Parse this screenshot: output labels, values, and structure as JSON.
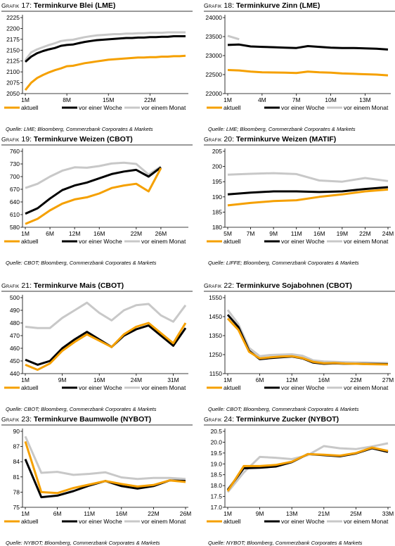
{
  "legend": [
    "aktuell",
    "vor einer Woche",
    "vor einem Monat"
  ],
  "colors": {
    "aktuell": "#f5a000",
    "woche": "#000000",
    "monat": "#c8c8c8"
  },
  "chart_data": [
    {
      "id": "g17",
      "prefix": "Grafik",
      "num": "17:",
      "title": "Terminkurve Blei (LME)",
      "source": "Quelle: LME; Bloomberg, Commerzbank Corporates & Markets",
      "type": "line",
      "yticks": [
        "2050",
        "2075",
        "2100",
        "2125",
        "2150",
        "2175",
        "2200",
        "2225"
      ],
      "ylim": [
        2050,
        2225
      ],
      "x_ticks": [
        "1M",
        "8M",
        "15M",
        "22M"
      ],
      "n_points": 28,
      "xtick_idx": [
        0,
        7,
        14,
        21
      ],
      "series": [
        {
          "name": "aktuell",
          "values": [
            2058,
            2075,
            2086,
            2093,
            2099,
            2104,
            2108,
            2113,
            2114,
            2117,
            2120,
            2122,
            2124,
            2126,
            2128,
            2129,
            2130,
            2131,
            2132,
            2133,
            2133,
            2134,
            2134,
            2135,
            2135,
            2136,
            2136,
            2137
          ]
        },
        {
          "name": "vor einer Woche",
          "values": [
            2123,
            2135,
            2143,
            2148,
            2152,
            2155,
            2160,
            2162,
            2163,
            2166,
            2169,
            2171,
            2173,
            2174,
            2175,
            2176,
            2177,
            2178,
            2178,
            2179,
            2179,
            2180,
            2180,
            2181,
            2181,
            2182,
            2182,
            2182
          ]
        },
        {
          "name": "vor einem Monat",
          "values": [
            2127,
            2145,
            2152,
            2157,
            2162,
            2166,
            2171,
            2173,
            2174,
            2177,
            2180,
            2182,
            2184,
            2185,
            2186,
            2187,
            2187,
            2188,
            2188,
            2189,
            2189,
            2190,
            2190,
            2190,
            2191,
            2191,
            2191,
            2191
          ]
        }
      ]
    },
    {
      "id": "g18",
      "prefix": "Grafik",
      "num": "18:",
      "title": "Terminkurve Zinn (LME)",
      "source": "Quelle: LME; Bloomberg, Commerzbank Corporates & Markets",
      "type": "line",
      "yticks": [
        "22000",
        "22500",
        "23000",
        "23500",
        "24000"
      ],
      "ylim": [
        22000,
        24000
      ],
      "x_ticks": [
        "1M",
        "4M",
        "7M",
        "10M",
        "13M"
      ],
      "n_points": 15,
      "xtick_idx": [
        0,
        3,
        6,
        9,
        12
      ],
      "series": [
        {
          "name": "aktuell",
          "values": [
            22620,
            22610,
            22580,
            22560,
            22555,
            22550,
            22540,
            22580,
            22560,
            22550,
            22530,
            22520,
            22510,
            22500,
            22480
          ]
        },
        {
          "name": "vor einer Woche",
          "values": [
            23280,
            23290,
            23240,
            23230,
            23220,
            23210,
            23200,
            23250,
            23230,
            23210,
            23200,
            23200,
            23190,
            23180,
            23160
          ]
        },
        {
          "name": "vor einem Monat",
          "values": [
            23520,
            23430,
            null,
            null,
            null,
            null,
            null,
            null,
            null,
            null,
            null,
            null,
            null,
            null,
            null
          ]
        }
      ]
    },
    {
      "id": "g19",
      "prefix": "Grafik",
      "num": "19:",
      "title": "Terminkurve Weizen (CBOT)",
      "source": "Quelle: CBOT; Bloomberg, Commerzbank Corporates & Markets",
      "type": "line",
      "yticks": [
        "580",
        "610",
        "640",
        "670",
        "700",
        "730",
        "760"
      ],
      "ylim": [
        580,
        760
      ],
      "x_ticks": [
        "1M",
        "6M",
        "12M",
        "16M",
        "22M",
        "26M"
      ],
      "n_points": 14,
      "xtick_idx": [
        0,
        2,
        4,
        6,
        9,
        11
      ],
      "series": [
        {
          "name": "aktuell",
          "values": [
            588,
            600,
            620,
            636,
            646,
            651,
            660,
            673,
            679,
            683,
            665,
            720,
            null,
            null
          ]
        },
        {
          "name": "vor einer Woche",
          "values": [
            612,
            625,
            648,
            668,
            679,
            686,
            696,
            706,
            712,
            716,
            700,
            722,
            null,
            null
          ]
        },
        {
          "name": "vor einem Monat",
          "values": [
            673,
            683,
            700,
            714,
            722,
            721,
            725,
            731,
            733,
            730,
            705,
            724,
            null,
            null
          ]
        }
      ]
    },
    {
      "id": "g20",
      "prefix": "Grafik",
      "num": "20:",
      "title": "Terminkurve Weizen (MATIF)",
      "source": "Quelle: LIFFE; Bloomberg, Commerzbank Corporates & Markets",
      "type": "line",
      "yticks": [
        "180",
        "185",
        "190",
        "195",
        "200",
        "205"
      ],
      "ylim": [
        180,
        205
      ],
      "x_ticks": [
        "5M",
        "7M",
        "9M",
        "11M",
        "16M",
        "19M",
        "22M",
        "24M"
      ],
      "n_points": 8,
      "xtick_idx": [
        0,
        1,
        2,
        3,
        4,
        5,
        6,
        7
      ],
      "series": [
        {
          "name": "aktuell",
          "values": [
            187.2,
            188.0,
            188.6,
            188.9,
            190.0,
            190.8,
            191.8,
            192.4
          ]
        },
        {
          "name": "vor einer Woche",
          "values": [
            190.8,
            191.4,
            191.8,
            191.8,
            191.6,
            191.8,
            192.6,
            193.2
          ]
        },
        {
          "name": "vor einem Monat",
          "values": [
            197.3,
            197.6,
            197.8,
            197.5,
            195.4,
            195.0,
            196.2,
            195.2
          ]
        }
      ]
    },
    {
      "id": "g21",
      "prefix": "Grafik",
      "num": "21:",
      "title": "Terminkurve Mais (CBOT)",
      "source": "Quelle: CBOT; Bloomberg, Commerzbank Corporates & Markets",
      "type": "line",
      "yticks": [
        "440",
        "450",
        "460",
        "470",
        "480",
        "490",
        "500"
      ],
      "ylim": [
        440,
        500
      ],
      "x_ticks": [
        "1M",
        "9M",
        "16M",
        "24M",
        "31M"
      ],
      "n_points": 14,
      "xtick_idx": [
        0,
        3,
        6,
        9,
        12
      ],
      "series": [
        {
          "name": "aktuell",
          "values": [
            447,
            443,
            448,
            458,
            465,
            471,
            466,
            461,
            471,
            477,
            480,
            472,
            464,
            480
          ]
        },
        {
          "name": "vor einer Woche",
          "values": [
            451,
            447,
            450,
            460,
            467,
            473,
            467,
            461,
            470,
            475,
            478,
            470,
            462,
            476
          ]
        },
        {
          "name": "vor einem Monat",
          "values": [
            477,
            476,
            476,
            484,
            490,
            496,
            488,
            482,
            490,
            494,
            495,
            486,
            481,
            494
          ]
        }
      ]
    },
    {
      "id": "g22",
      "prefix": "Grafik",
      "num": "22:",
      "title": "Terminkurve Sojabohnen (CBOT)",
      "source": "Quelle: CBOT; Bloomberg, Commerzbank Corporates & Markets",
      "type": "line",
      "yticks": [
        "1150",
        "1250",
        "1350",
        "1450",
        "1550"
      ],
      "ylim": [
        1150,
        1550
      ],
      "x_ticks": [
        "1M",
        "6M",
        "12M",
        "16M",
        "22M",
        "27M"
      ],
      "n_points": 16,
      "xtick_idx": [
        0,
        3,
        6,
        9,
        12,
        15
      ],
      "series": [
        {
          "name": "aktuell",
          "values": [
            1440,
            1380,
            1265,
            1230,
            1236,
            1240,
            1242,
            1232,
            1212,
            1205,
            1206,
            1203,
            1202,
            1200,
            1199,
            1198
          ]
        },
        {
          "name": "vor einer Woche",
          "values": [
            1460,
            1395,
            1270,
            1226,
            1232,
            1236,
            1240,
            1230,
            1208,
            1202,
            1204,
            1202,
            1202,
            1201,
            1201,
            1200
          ]
        },
        {
          "name": "vor einem Monat",
          "values": [
            1485,
            1410,
            1285,
            1242,
            1248,
            1250,
            1252,
            1244,
            1220,
            1214,
            1212,
            1210,
            1209,
            1208,
            1206,
            1206
          ]
        }
      ]
    },
    {
      "id": "g23",
      "prefix": "Grafik",
      "num": "23:",
      "title": "Terminkurve Baumwolle (NYBOT)",
      "source": "Quelle: NYBOT; Bloomberg, Commerzbank Corporates & Markets",
      "type": "line",
      "yticks": [
        "75",
        "78",
        "81",
        "84",
        "87",
        "90"
      ],
      "ylim": [
        75,
        90
      ],
      "x_ticks": [
        "1M",
        "6M",
        "11M",
        "16M",
        "22M",
        "26M"
      ],
      "n_points": 11,
      "xtick_idx": [
        0,
        2,
        4,
        6,
        8,
        10
      ],
      "series": [
        {
          "name": "aktuell",
          "values": [
            88.0,
            78.0,
            77.8,
            78.8,
            79.5,
            80.2,
            79.6,
            79.1,
            79.4,
            80.3,
            80.0
          ]
        },
        {
          "name": "vor einer Woche",
          "values": [
            84.5,
            77.0,
            77.3,
            78.2,
            79.3,
            80.2,
            79.2,
            78.7,
            79.2,
            80.3,
            80.2
          ]
        },
        {
          "name": "vor einem Monat",
          "values": [
            89.0,
            81.8,
            82.0,
            81.4,
            81.6,
            81.9,
            80.9,
            80.6,
            80.8,
            80.8,
            80.6
          ]
        }
      ]
    },
    {
      "id": "g24",
      "prefix": "Grafik",
      "num": "24:",
      "title": "Terminkurve Zucker (NYBOT)",
      "source": "Quelle: NYBOT; Bloomberg, Commerzbank Corporates & Markets",
      "type": "line",
      "yticks": [
        "17.0",
        "17.5",
        "18.0",
        "18.5",
        "19.0",
        "19.5",
        "20.0",
        "20.5"
      ],
      "ylim": [
        17.0,
        20.5
      ],
      "x_ticks": [
        "1M",
        "9M",
        "13M",
        "21M",
        "25M",
        "33M"
      ],
      "n_points": 11,
      "xtick_idx": [
        0,
        2,
        4,
        6,
        8,
        10
      ],
      "series": [
        {
          "name": "aktuell",
          "values": [
            17.75,
            18.9,
            18.9,
            18.95,
            19.1,
            19.45,
            19.42,
            19.38,
            19.5,
            19.75,
            19.6
          ]
        },
        {
          "name": "vor einer Woche",
          "values": [
            17.8,
            18.8,
            18.82,
            18.88,
            19.08,
            19.45,
            19.4,
            19.35,
            19.48,
            19.72,
            19.55
          ]
        },
        {
          "name": "vor einem Monat",
          "values": [
            17.7,
            18.6,
            19.32,
            19.28,
            19.22,
            19.4,
            19.82,
            19.72,
            19.68,
            19.8,
            19.95
          ]
        }
      ]
    }
  ]
}
